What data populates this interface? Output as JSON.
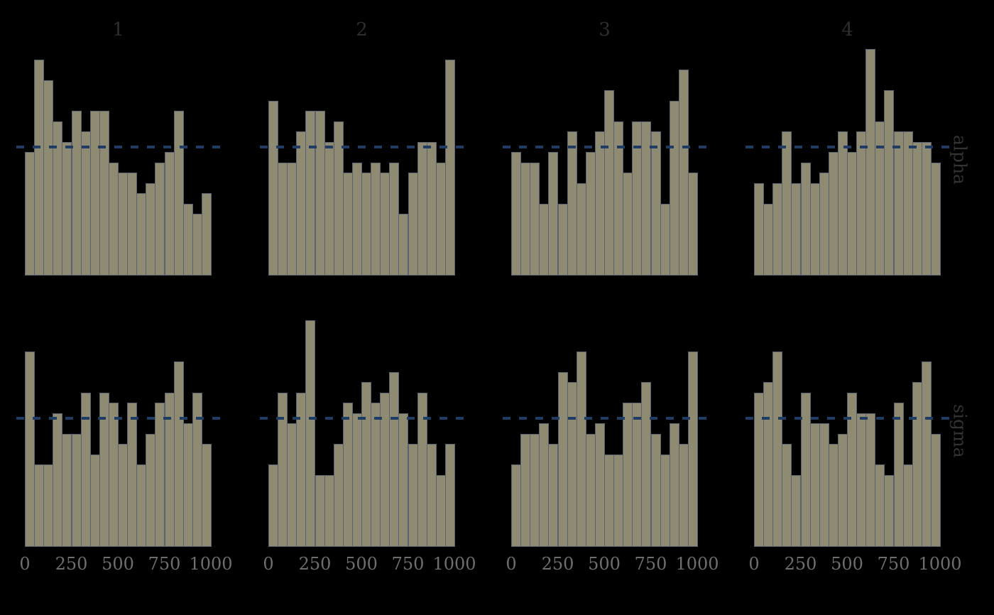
{
  "figure": {
    "background": "#000000",
    "column_titles": [
      "1",
      "2",
      "3",
      "4"
    ],
    "row_labels": [
      "alpha",
      "sigma"
    ]
  },
  "colors": {
    "bar_fill": "#8f8a72",
    "bar_edge": "#5d6270",
    "reference_line": "#1e3c64",
    "tick_label": "#6e6e6e",
    "column_title": "#2e2e2e",
    "row_label": "#333333",
    "background": "#000000"
  },
  "chart_data": {
    "type": "bar",
    "subtype": "rank-histogram-facet-grid",
    "title": "",
    "columns": [
      "1",
      "2",
      "3",
      "4"
    ],
    "rows": [
      "alpha",
      "sigma"
    ],
    "xlabel": "",
    "ylabel": "",
    "x_range": [
      0,
      1000
    ],
    "n_bins": 20,
    "bin_width": 50,
    "xticks": [
      "0",
      "250",
      "500",
      "750",
      "1000"
    ],
    "xtick_values": [
      0,
      250,
      500,
      750,
      1000
    ],
    "ylim": [
      0,
      90
    ],
    "grid": false,
    "legend": false,
    "reference_line": {
      "value": 50,
      "style": "dashed",
      "orientation": "horizontal"
    },
    "facets": [
      {
        "row": "alpha",
        "chain": "1",
        "counts": [
          48,
          84,
          76,
          60,
          52,
          64,
          56,
          64,
          64,
          44,
          40,
          40,
          32,
          36,
          44,
          48,
          64,
          28,
          24,
          32
        ]
      },
      {
        "row": "alpha",
        "chain": "2",
        "counts": [
          68,
          44,
          44,
          56,
          64,
          64,
          52,
          60,
          40,
          44,
          40,
          44,
          40,
          44,
          24,
          40,
          52,
          52,
          44,
          84
        ]
      },
      {
        "row": "alpha",
        "chain": "3",
        "counts": [
          48,
          44,
          44,
          28,
          48,
          28,
          56,
          36,
          48,
          56,
          72,
          60,
          40,
          60,
          60,
          56,
          28,
          68,
          80,
          40
        ]
      },
      {
        "row": "alpha",
        "chain": "4",
        "counts": [
          36,
          28,
          36,
          56,
          36,
          44,
          36,
          40,
          48,
          56,
          48,
          56,
          88,
          60,
          72,
          56,
          56,
          52,
          52,
          44
        ]
      },
      {
        "row": "sigma",
        "chain": "1",
        "counts": [
          76,
          32,
          32,
          52,
          44,
          44,
          60,
          36,
          60,
          56,
          40,
          56,
          32,
          44,
          56,
          60,
          72,
          48,
          60,
          40
        ]
      },
      {
        "row": "sigma",
        "chain": "2",
        "counts": [
          32,
          60,
          48,
          60,
          88,
          28,
          28,
          40,
          56,
          52,
          64,
          56,
          60,
          68,
          52,
          40,
          60,
          40,
          28,
          40
        ]
      },
      {
        "row": "sigma",
        "chain": "3",
        "counts": [
          32,
          44,
          44,
          48,
          40,
          68,
          64,
          76,
          44,
          48,
          36,
          36,
          56,
          56,
          64,
          44,
          36,
          48,
          40,
          76
        ]
      },
      {
        "row": "sigma",
        "chain": "4",
        "counts": [
          60,
          64,
          76,
          40,
          28,
          60,
          48,
          48,
          40,
          44,
          60,
          52,
          52,
          32,
          28,
          56,
          32,
          64,
          72,
          44
        ]
      }
    ]
  }
}
